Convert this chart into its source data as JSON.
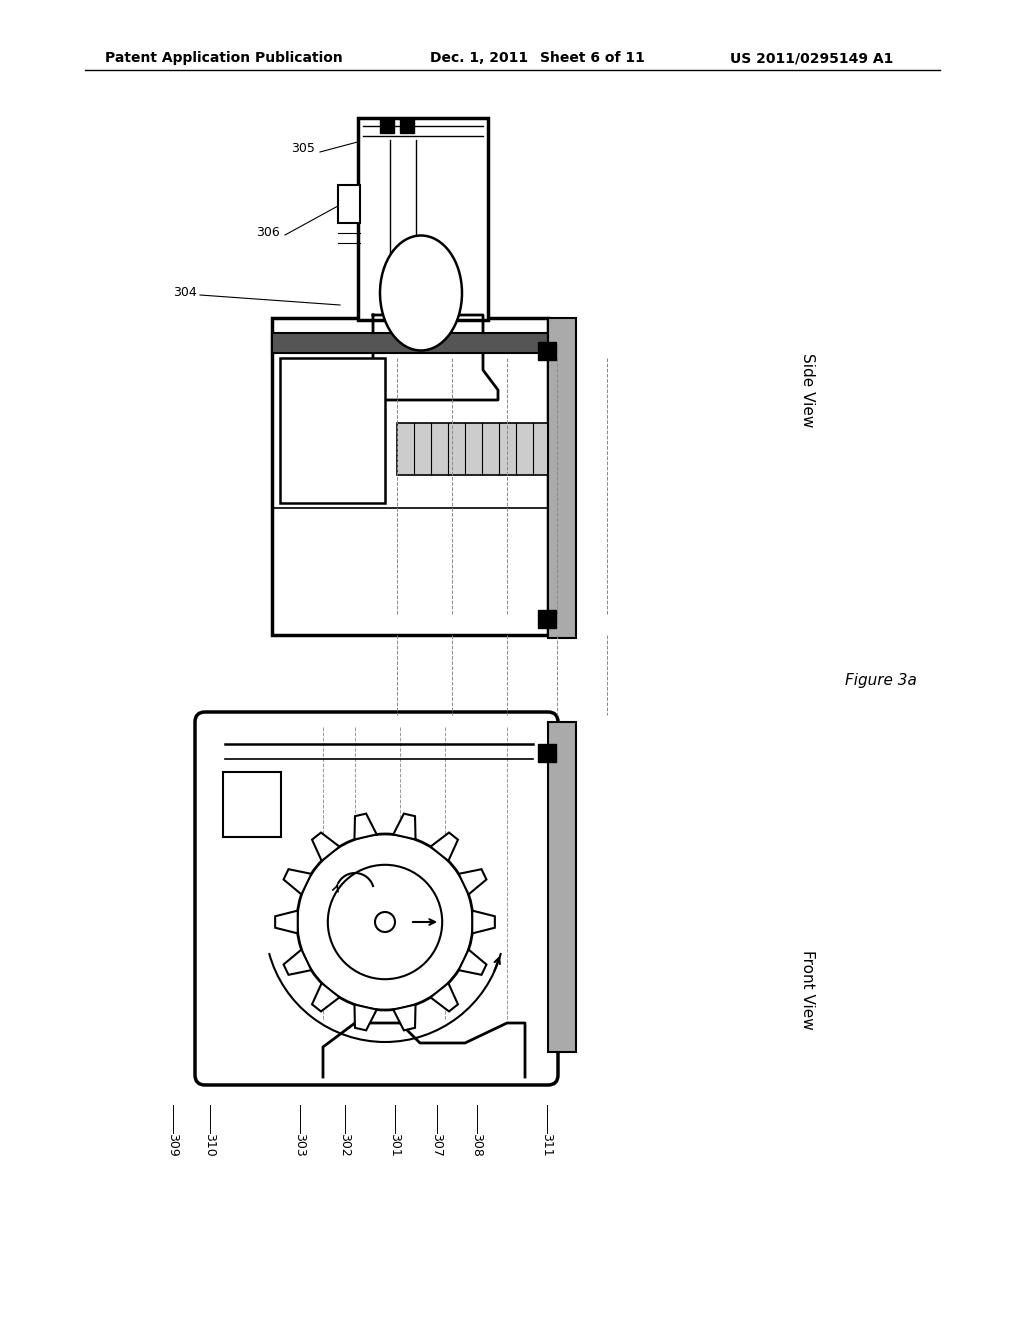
{
  "bg_color": "#ffffff",
  "header_text": "Patent Application Publication",
  "header_date": "Dec. 1, 2011",
  "header_sheet": "Sheet 6 of 11",
  "header_patent": "US 2011/0295149 A1",
  "figure_label": "Figure 3a",
  "side_view_label": "Side View",
  "front_view_label": "Front View"
}
